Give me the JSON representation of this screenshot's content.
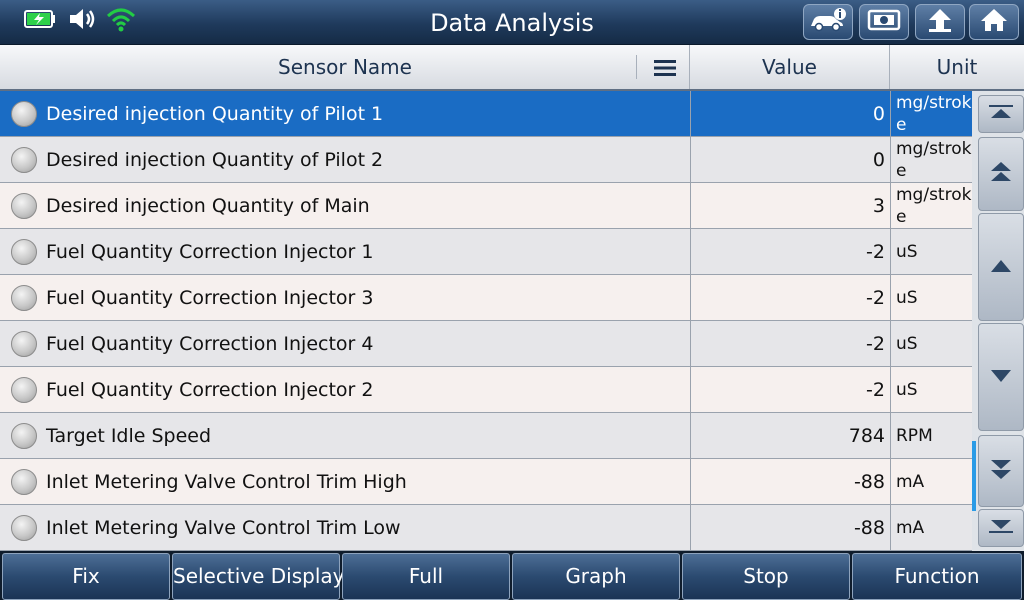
{
  "title": "Data Analysis",
  "status": {
    "battery_icon": "battery-charging-icon",
    "volume_icon": "speaker-icon",
    "wifi_icon": "wifi-icon"
  },
  "toolbar": [
    "vehicle-info-icon",
    "screenshot-icon",
    "back-icon",
    "home-icon"
  ],
  "header": {
    "sensor_name": "Sensor Name",
    "value": "Value",
    "unit": "Unit"
  },
  "rows": [
    {
      "name": "Desired injection Quantity of Pilot 1",
      "value": "0",
      "unit": "mg/stroke",
      "selected": true
    },
    {
      "name": "Desired injection Quantity of Pilot 2",
      "value": "0",
      "unit": "mg/stroke"
    },
    {
      "name": "Desired injection Quantity of Main",
      "value": "3",
      "unit": "mg/stroke"
    },
    {
      "name": "Fuel Quantity Correction Injector 1",
      "value": "-2",
      "unit": "uS"
    },
    {
      "name": "Fuel Quantity Correction Injector 3",
      "value": "-2",
      "unit": "uS"
    },
    {
      "name": "Fuel Quantity Correction Injector 4",
      "value": "-2",
      "unit": "uS"
    },
    {
      "name": "Fuel Quantity Correction Injector 2",
      "value": "-2",
      "unit": "uS"
    },
    {
      "name": "Target Idle Speed",
      "value": "784",
      "unit": "RPM"
    },
    {
      "name": "Inlet Metering Valve Control Trim High",
      "value": "-88",
      "unit": "mA"
    },
    {
      "name": "Inlet Metering Valve Control Trim Low",
      "value": "-88",
      "unit": "mA"
    }
  ],
  "bottom_buttons": [
    "Fix",
    "Selective Display",
    "Full",
    "Graph",
    "Stop",
    "Function"
  ],
  "colors": {
    "selected_row": "#1a6cc4",
    "accent_wifi": "#22cc44",
    "scroll_thumb": "#2a9be6"
  }
}
